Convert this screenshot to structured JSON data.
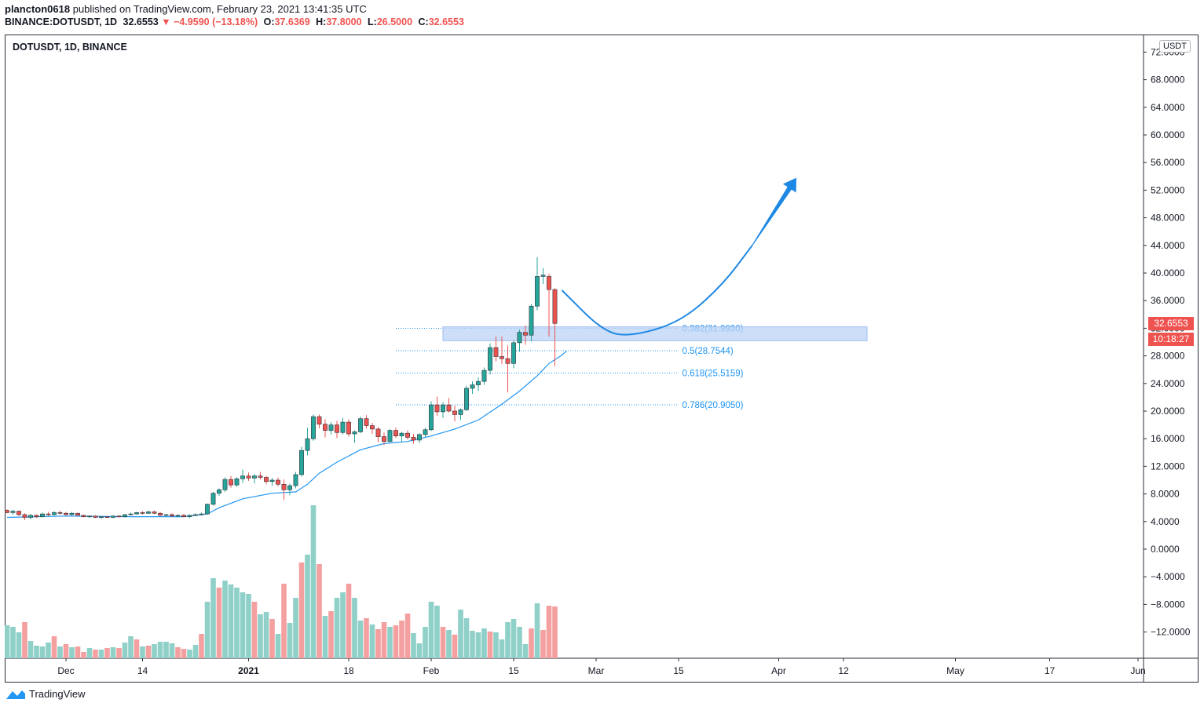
{
  "header": {
    "author": "plancton0618",
    "published_text": "published on TradingView.com, February 23, 2021 13:41:35 UTC",
    "symbol_line": "BINANCE:DOTUSDT, 1D",
    "last": "32.6553",
    "change": "−4.9590 (−13.18%)",
    "o_label": "O:",
    "o": "37.6369",
    "h_label": "H:",
    "h": "37.8000",
    "l_label": "L:",
    "l": "26.5000",
    "c_label": "C:",
    "c": "32.6553"
  },
  "chart_label": "DOTUSDT, 1D, BINANCE",
  "currency": "USDT",
  "price_tag": {
    "price": "32.6553",
    "countdown": "10:18:27"
  },
  "footer": {
    "brand": "TradingView"
  },
  "colors": {
    "up": "#26a69a",
    "down": "#ef5350",
    "vol_up": "#8fd0c8",
    "vol_down": "#f4a0a0",
    "fib": "#2196f3",
    "zone": "#bbd3f6",
    "ema": "#2196f3",
    "arrow": "#1e88e5"
  },
  "chart_data": {
    "type": "candlestick",
    "y_axis": {
      "ticks": [
        -12,
        -8,
        -4,
        0,
        4,
        8,
        12,
        16,
        20,
        24,
        28,
        32,
        36,
        40,
        44,
        48,
        52,
        56,
        60,
        64,
        68,
        72
      ],
      "tick_labels": [
        "−12.0000",
        "−8.0000",
        "−4.0000",
        "0.0000",
        "4.0000",
        "8.0000",
        "12.0000",
        "16.0000",
        "20.0000",
        "24.0000",
        "28.0000",
        "32.0000",
        "36.0000",
        "40.0000",
        "44.0000",
        "48.0000",
        "52.0000",
        "56.0000",
        "60.0000",
        "64.0000",
        "68.0000",
        "72.0000"
      ]
    },
    "x_axis": {
      "start_date": "2020-11-21",
      "labels": [
        {
          "day": 10,
          "text": "Dec"
        },
        {
          "day": 23,
          "text": "14"
        },
        {
          "day": 41,
          "text": "2021"
        },
        {
          "day": 58,
          "text": "18"
        },
        {
          "day": 72,
          "text": "Feb"
        },
        {
          "day": 86,
          "text": "15"
        },
        {
          "day": 100,
          "text": "Mar"
        },
        {
          "day": 114,
          "text": "15"
        },
        {
          "day": 131,
          "text": "Apr"
        },
        {
          "day": 142,
          "text": "12"
        },
        {
          "day": 161,
          "text": "May"
        },
        {
          "day": 177,
          "text": "17"
        },
        {
          "day": 192,
          "text": "Jun"
        }
      ]
    },
    "candles": [
      [
        5.6,
        5.8,
        5.2,
        5.3
      ],
      [
        5.3,
        5.7,
        5.0,
        5.5
      ],
      [
        5.5,
        5.6,
        4.8,
        5.0
      ],
      [
        5.0,
        5.2,
        4.2,
        4.6
      ],
      [
        4.6,
        5.1,
        4.3,
        4.9
      ],
      [
        4.9,
        5.0,
        4.5,
        4.7
      ],
      [
        4.7,
        5.3,
        4.6,
        5.1
      ],
      [
        5.1,
        5.4,
        4.8,
        5.0
      ],
      [
        5.0,
        5.5,
        4.9,
        5.3
      ],
      [
        5.3,
        5.6,
        5.0,
        5.2
      ],
      [
        5.2,
        5.4,
        4.9,
        5.0
      ],
      [
        5.0,
        5.4,
        4.8,
        5.2
      ],
      [
        5.2,
        5.3,
        4.8,
        4.9
      ],
      [
        4.9,
        5.0,
        4.6,
        4.7
      ],
      [
        4.7,
        4.9,
        4.5,
        4.8
      ],
      [
        4.8,
        4.9,
        4.5,
        4.6
      ],
      [
        4.6,
        4.8,
        4.4,
        4.7
      ],
      [
        4.7,
        4.8,
        4.5,
        4.6
      ],
      [
        4.6,
        4.9,
        4.5,
        4.8
      ],
      [
        4.8,
        4.9,
        4.6,
        4.7
      ],
      [
        4.7,
        5.1,
        4.6,
        5.0
      ],
      [
        5.0,
        5.3,
        4.9,
        5.1
      ],
      [
        5.1,
        5.4,
        5.0,
        5.3
      ],
      [
        5.3,
        5.5,
        5.0,
        5.2
      ],
      [
        5.2,
        5.6,
        5.1,
        5.4
      ],
      [
        5.4,
        5.6,
        5.1,
        5.2
      ],
      [
        5.2,
        5.4,
        4.8,
        4.9
      ],
      [
        4.9,
        5.1,
        4.7,
        5.0
      ],
      [
        5.0,
        5.2,
        4.7,
        4.8
      ],
      [
        4.8,
        5.0,
        4.6,
        4.9
      ],
      [
        4.9,
        5.1,
        4.6,
        4.7
      ],
      [
        4.7,
        5.0,
        4.5,
        4.9
      ],
      [
        4.9,
        5.2,
        4.8,
        5.0
      ],
      [
        5.0,
        5.3,
        4.9,
        5.1
      ],
      [
        5.1,
        6.6,
        5.0,
        6.5
      ],
      [
        6.5,
        8.3,
        6.3,
        8.1
      ],
      [
        8.1,
        8.8,
        7.7,
        8.6
      ],
      [
        8.6,
        10.4,
        8.3,
        10.1
      ],
      [
        10.1,
        10.6,
        8.9,
        9.3
      ],
      [
        9.3,
        10.4,
        9.0,
        10.2
      ],
      [
        10.2,
        11.5,
        9.6,
        10.6
      ],
      [
        10.6,
        11.1,
        9.9,
        10.3
      ],
      [
        10.3,
        10.9,
        9.5,
        10.6
      ],
      [
        10.6,
        11.2,
        10.1,
        10.4
      ],
      [
        10.4,
        10.6,
        9.4,
        9.8
      ],
      [
        9.8,
        10.3,
        9.2,
        10.0
      ],
      [
        10.0,
        10.4,
        9.1,
        9.4
      ],
      [
        9.4,
        10.1,
        7.1,
        8.6
      ],
      [
        8.6,
        9.5,
        7.8,
        9.2
      ],
      [
        9.2,
        11.2,
        8.8,
        10.8
      ],
      [
        10.8,
        14.8,
        10.5,
        14.3
      ],
      [
        14.3,
        17.6,
        13.6,
        16.0
      ],
      [
        16.0,
        19.5,
        15.7,
        19.2
      ],
      [
        19.2,
        19.5,
        17.5,
        18.1
      ],
      [
        18.1,
        18.8,
        16.2,
        17.2
      ],
      [
        17.2,
        18.4,
        16.6,
        18.0
      ],
      [
        18.0,
        18.6,
        16.1,
        16.9
      ],
      [
        16.9,
        19.0,
        16.6,
        18.4
      ],
      [
        18.4,
        18.8,
        16.3,
        16.7
      ],
      [
        16.7,
        17.2,
        15.4,
        17.0
      ],
      [
        17.0,
        19.2,
        16.8,
        18.9
      ],
      [
        18.9,
        19.4,
        17.5,
        17.9
      ],
      [
        17.9,
        18.3,
        16.7,
        17.4
      ],
      [
        17.4,
        17.7,
        15.5,
        16.3
      ],
      [
        16.3,
        16.9,
        15.1,
        15.6
      ],
      [
        15.6,
        17.4,
        15.5,
        17.2
      ],
      [
        17.2,
        17.6,
        16.1,
        16.4
      ],
      [
        16.4,
        17.0,
        15.5,
        16.8
      ],
      [
        16.8,
        17.2,
        15.9,
        16.2
      ],
      [
        16.2,
        16.7,
        15.3,
        15.8
      ],
      [
        15.8,
        16.8,
        15.4,
        16.6
      ],
      [
        16.6,
        17.6,
        16.2,
        17.3
      ],
      [
        17.3,
        21.4,
        17.1,
        20.9
      ],
      [
        20.9,
        22.1,
        19.3,
        19.9
      ],
      [
        19.9,
        21.3,
        19.0,
        20.9
      ],
      [
        20.9,
        21.9,
        19.8,
        20.0
      ],
      [
        20.0,
        20.8,
        18.5,
        19.5
      ],
      [
        19.5,
        20.4,
        18.7,
        20.2
      ],
      [
        20.2,
        23.7,
        20.0,
        23.3
      ],
      [
        23.3,
        24.3,
        22.5,
        23.8
      ],
      [
        23.8,
        24.9,
        22.9,
        24.3
      ],
      [
        24.3,
        26.3,
        23.8,
        25.9
      ],
      [
        25.9,
        29.8,
        25.3,
        29.2
      ],
      [
        29.2,
        30.8,
        27.2,
        27.9
      ],
      [
        27.9,
        30.8,
        26.8,
        27.6
      ],
      [
        27.6,
        29.5,
        22.7,
        26.9
      ],
      [
        26.9,
        30.2,
        26.2,
        29.9
      ],
      [
        29.9,
        31.8,
        28.6,
        31.4
      ],
      [
        31.4,
        32.4,
        29.6,
        31.0
      ],
      [
        31.0,
        35.5,
        30.1,
        35.2
      ],
      [
        35.2,
        42.3,
        34.6,
        39.5
      ],
      [
        39.5,
        40.7,
        38.4,
        39.7
      ],
      [
        39.5,
        39.9,
        30.8,
        37.6
      ],
      [
        37.6,
        37.8,
        26.5,
        32.7
      ]
    ],
    "volumes": [
      [
        42,
        1
      ],
      [
        40,
        1
      ],
      [
        33,
        1
      ],
      [
        46,
        0
      ],
      [
        22,
        1
      ],
      [
        16,
        1
      ],
      [
        15,
        1
      ],
      [
        20,
        1
      ],
      [
        28,
        0
      ],
      [
        15,
        1
      ],
      [
        18,
        0
      ],
      [
        14,
        1
      ],
      [
        15,
        0
      ],
      [
        8,
        0
      ],
      [
        13,
        1
      ],
      [
        11,
        0
      ],
      [
        11,
        1
      ],
      [
        13,
        0
      ],
      [
        14,
        1
      ],
      [
        13,
        0
      ],
      [
        20,
        1
      ],
      [
        28,
        1
      ],
      [
        24,
        0
      ],
      [
        15,
        1
      ],
      [
        16,
        0
      ],
      [
        18,
        1
      ],
      [
        21,
        1
      ],
      [
        21,
        1
      ],
      [
        19,
        1
      ],
      [
        14,
        0
      ],
      [
        12,
        0
      ],
      [
        11,
        1
      ],
      [
        17,
        1
      ],
      [
        31,
        0
      ],
      [
        72,
        1
      ],
      [
        102,
        1
      ],
      [
        90,
        0
      ],
      [
        99,
        1
      ],
      [
        94,
        1
      ],
      [
        90,
        1
      ],
      [
        84,
        1
      ],
      [
        82,
        1
      ],
      [
        72,
        0
      ],
      [
        56,
        1
      ],
      [
        59,
        1
      ],
      [
        50,
        0
      ],
      [
        31,
        1
      ],
      [
        95,
        0
      ],
      [
        45,
        1
      ],
      [
        77,
        1
      ],
      [
        122,
        0
      ],
      [
        132,
        1
      ],
      [
        195,
        1
      ],
      [
        120,
        0
      ],
      [
        54,
        1
      ],
      [
        60,
        0
      ],
      [
        77,
        1
      ],
      [
        84,
        1
      ],
      [
        95,
        0
      ],
      [
        77,
        1
      ],
      [
        48,
        1
      ],
      [
        51,
        0
      ],
      [
        43,
        1
      ],
      [
        37,
        0
      ],
      [
        46,
        0
      ],
      [
        40,
        1
      ],
      [
        42,
        0
      ],
      [
        48,
        0
      ],
      [
        57,
        0
      ],
      [
        32,
        1
      ],
      [
        19,
        1
      ],
      [
        40,
        1
      ],
      [
        72,
        1
      ],
      [
        67,
        1
      ],
      [
        40,
        0
      ],
      [
        36,
        1
      ],
      [
        30,
        0
      ],
      [
        62,
        1
      ],
      [
        51,
        1
      ],
      [
        35,
        1
      ],
      [
        33,
        1
      ],
      [
        38,
        1
      ],
      [
        34,
        0
      ],
      [
        33,
        1
      ],
      [
        24,
        1
      ],
      [
        46,
        1
      ],
      [
        50,
        1
      ],
      [
        40,
        1
      ],
      [
        18,
        1
      ],
      [
        38,
        0
      ],
      [
        70,
        1
      ],
      [
        36,
        0
      ],
      [
        67,
        0
      ],
      [
        66,
        0
      ]
    ],
    "ema": [
      [
        0,
        4.6
      ],
      [
        10,
        4.8
      ],
      [
        20,
        4.7
      ],
      [
        30,
        4.7
      ],
      [
        34,
        5.1
      ],
      [
        36,
        6.0
      ],
      [
        40,
        7.3
      ],
      [
        45,
        8.1
      ],
      [
        49,
        8.3
      ],
      [
        51,
        9.4
      ],
      [
        53,
        11.0
      ],
      [
        56,
        12.6
      ],
      [
        60,
        14.4
      ],
      [
        64,
        15.3
      ],
      [
        68,
        15.6
      ],
      [
        72,
        16.4
      ],
      [
        76,
        17.4
      ],
      [
        80,
        18.7
      ],
      [
        84,
        21.0
      ],
      [
        87,
        22.9
      ],
      [
        90,
        25.1
      ],
      [
        92,
        26.9
      ],
      [
        94,
        28.0
      ],
      [
        95,
        28.7
      ]
    ],
    "fib_levels": [
      {
        "ratio_text": "0.382(31.9930)",
        "value": 31.993
      },
      {
        "ratio_text": "0.5(28.7544)",
        "value": 28.7544
      },
      {
        "ratio_text": "0.618(25.5159)",
        "value": 25.5159
      },
      {
        "ratio_text": "0.786(20.9050)",
        "value": 20.905
      }
    ],
    "zone": {
      "from_day": 74,
      "to_day": 146,
      "low": 30.2,
      "high": 32.2
    },
    "projection": {
      "points": [
        [
          94.2,
          37.5
        ],
        [
          101.5,
          31.3
        ],
        [
          106.5,
          30.9
        ],
        [
          114.5,
          33.0
        ],
        [
          121.5,
          38.3
        ],
        [
          126.5,
          44.0
        ]
      ],
      "arrow_tip": [
        134,
        53.8
      ]
    }
  }
}
